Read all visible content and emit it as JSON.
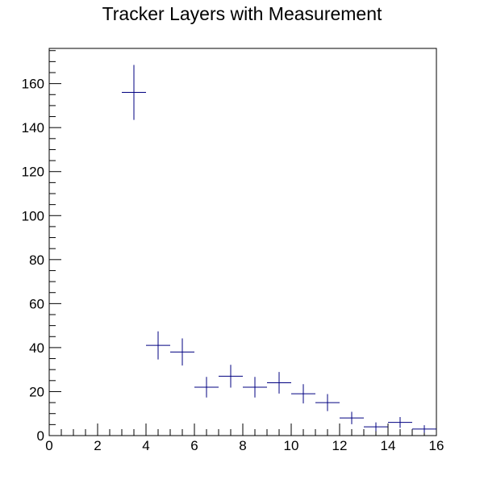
{
  "chart_data": {
    "type": "scatter",
    "title": "Tracker Layers with Measurement",
    "xlabel": "",
    "ylabel": "",
    "xlim": [
      0,
      16
    ],
    "ylim": [
      0,
      176
    ],
    "grid": false,
    "x_ticks": [
      0,
      2,
      4,
      6,
      8,
      10,
      12,
      14,
      16
    ],
    "y_ticks": [
      0,
      20,
      40,
      60,
      80,
      100,
      120,
      140,
      160
    ],
    "color": "#000080",
    "series": [
      {
        "bin_width": 1,
        "x": [
          3.5,
          4.5,
          5.5,
          6.5,
          7.5,
          8.5,
          9.5,
          10.5,
          11.5,
          12.5,
          13.5,
          14.5,
          15.5
        ],
        "y": [
          156,
          41,
          38,
          22,
          27,
          22,
          24,
          19,
          15,
          8,
          4,
          6,
          3
        ]
      }
    ]
  }
}
